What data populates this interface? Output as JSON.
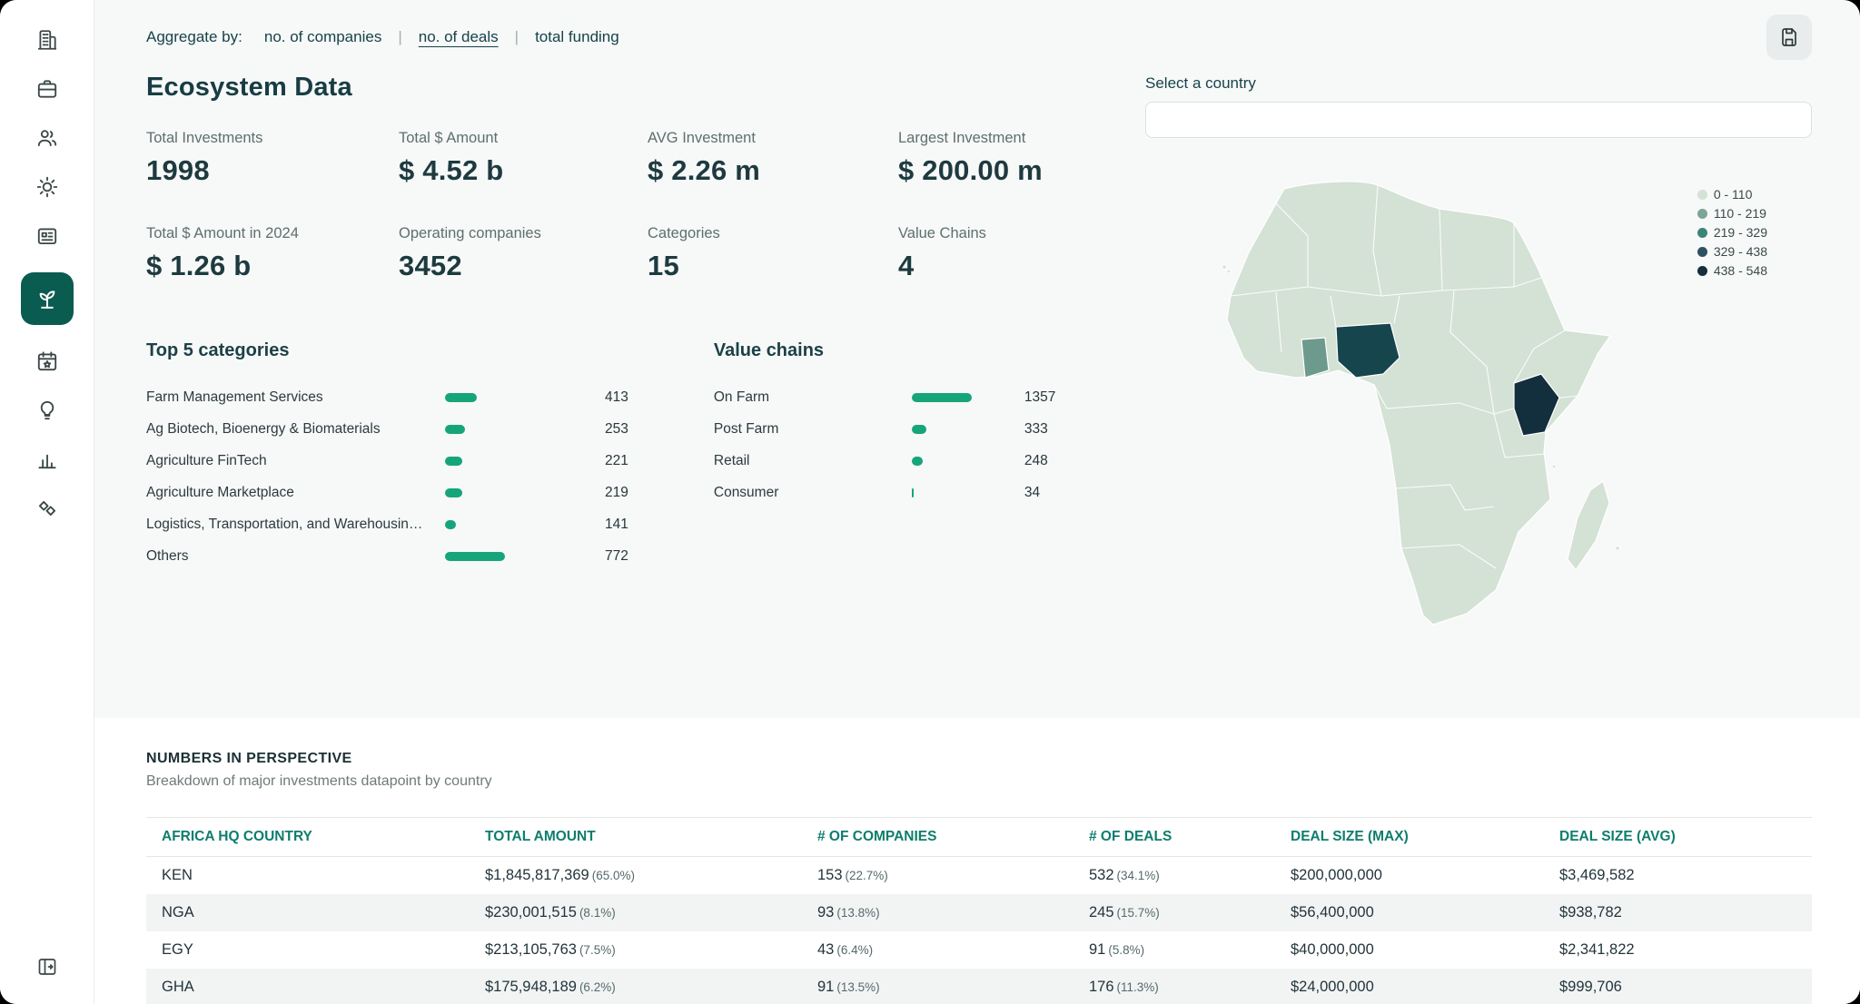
{
  "colors": {
    "accent_green": "#16a57a",
    "sidebar_active_bg": "#0a5c50",
    "table_header_text": "#0e7d6d",
    "map_base": "#d4e1d5"
  },
  "topbar": {
    "aggregate_label": "Aggregate by:",
    "separator": "|",
    "options": [
      {
        "label": "no. of companies",
        "active": false
      },
      {
        "label": "no. of deals",
        "active": true
      },
      {
        "label": "total funding",
        "active": false
      }
    ]
  },
  "header": {
    "title": "Ecosystem Data"
  },
  "stats": [
    {
      "label": "Total Investments",
      "value": "1998"
    },
    {
      "label": "Total $ Amount",
      "value": "$ 4.52 b"
    },
    {
      "label": "AVG Investment",
      "value": "$ 2.26 m"
    },
    {
      "label": "Largest Investment",
      "value": "$ 200.00 m"
    },
    {
      "label": "Total $ Amount in 2024",
      "value": "$ 1.26 b"
    },
    {
      "label": "Operating companies",
      "value": "3452"
    },
    {
      "label": "Categories",
      "value": "15"
    },
    {
      "label": "Value Chains",
      "value": "4"
    }
  ],
  "country_select": {
    "label": "Select a country",
    "value": ""
  },
  "map": {
    "legend": [
      {
        "label": "0 - 110",
        "color": "#d4e1d5"
      },
      {
        "label": "110 - 219",
        "color": "#7ea496"
      },
      {
        "label": "219 - 329",
        "color": "#3a8577"
      },
      {
        "label": "329 - 438",
        "color": "#2e5161"
      },
      {
        "label": "438 - 548",
        "color": "#152f3c"
      }
    ],
    "highlighted_countries": [
      {
        "name": "Nigeria",
        "color": "#16454e"
      },
      {
        "name": "Ghana",
        "color": "#6e9a8d"
      },
      {
        "name": "Kenya",
        "color": "#132e3c"
      }
    ]
  },
  "top_categories": {
    "title": "Top 5 categories",
    "items": [
      {
        "label": "Farm Management Services",
        "value": 413
      },
      {
        "label": "Ag Biotech, Bioenergy & Biomaterials",
        "value": 253
      },
      {
        "label": "Agriculture FinTech",
        "value": 221
      },
      {
        "label": "Agriculture Marketplace",
        "value": 219
      },
      {
        "label": "Logistics, Transportation, and Warehousin…",
        "value": 141
      },
      {
        "label": "Others",
        "value": 772
      }
    ]
  },
  "value_chains": {
    "title": "Value chains",
    "items": [
      {
        "label": "On Farm",
        "value": 1357
      },
      {
        "label": "Post Farm",
        "value": 333
      },
      {
        "label": "Retail",
        "value": 248
      },
      {
        "label": "Consumer",
        "value": 34
      }
    ]
  },
  "table_section": {
    "title": "NUMBERS IN PERSPECTIVE",
    "subtitle": "Breakdown of major investments datapoint by country",
    "columns": [
      "AFRICA HQ COUNTRY",
      "TOTAL AMOUNT",
      "# OF COMPANIES",
      "# OF DEALS",
      "DEAL SIZE (MAX)",
      "DEAL SIZE (AVG)"
    ],
    "rows": [
      {
        "cells": [
          {
            "v": "KEN"
          },
          {
            "v": "$1,845,817,369",
            "pct": "(65.0%)"
          },
          {
            "v": "153",
            "pct": "(22.7%)"
          },
          {
            "v": "532",
            "pct": "(34.1%)"
          },
          {
            "v": "$200,000,000"
          },
          {
            "v": "$3,469,582"
          }
        ]
      },
      {
        "cells": [
          {
            "v": "NGA"
          },
          {
            "v": "$230,001,515",
            "pct": "(8.1%)"
          },
          {
            "v": "93",
            "pct": "(13.8%)"
          },
          {
            "v": "245",
            "pct": "(15.7%)"
          },
          {
            "v": "$56,400,000"
          },
          {
            "v": "$938,782"
          }
        ]
      },
      {
        "cells": [
          {
            "v": "EGY"
          },
          {
            "v": "$213,105,763",
            "pct": "(7.5%)"
          },
          {
            "v": "43",
            "pct": "(6.4%)"
          },
          {
            "v": "91",
            "pct": "(5.8%)"
          },
          {
            "v": "$40,000,000"
          },
          {
            "v": "$2,341,822"
          }
        ]
      },
      {
        "cells": [
          {
            "v": "GHA"
          },
          {
            "v": "$175,948,189",
            "pct": "(6.2%)"
          },
          {
            "v": "91",
            "pct": "(13.5%)"
          },
          {
            "v": "176",
            "pct": "(11.3%)"
          },
          {
            "v": "$24,000,000"
          },
          {
            "v": "$999,706"
          }
        ]
      }
    ]
  },
  "chart_data": [
    {
      "type": "bar",
      "title": "Top 5 categories",
      "categories": [
        "Farm Management Services",
        "Ag Biotech, Bioenergy & Biomaterials",
        "Agriculture FinTech",
        "Agriculture Marketplace",
        "Logistics, Transportation, and Warehousin…",
        "Others"
      ],
      "values": [
        413,
        253,
        221,
        219,
        141,
        772
      ],
      "orientation": "horizontal"
    },
    {
      "type": "bar",
      "title": "Value chains",
      "categories": [
        "On Farm",
        "Post Farm",
        "Retail",
        "Consumer"
      ],
      "values": [
        1357,
        333,
        248,
        34
      ],
      "orientation": "horizontal"
    },
    {
      "type": "heatmap",
      "title": "Africa choropleth — no. of deals by country",
      "legend_buckets": [
        "0 - 110",
        "110 - 219",
        "219 - 329",
        "329 - 438",
        "438 - 548"
      ],
      "highlighted": [
        {
          "country": "Kenya",
          "value": 532
        },
        {
          "country": "Nigeria",
          "value": 245
        },
        {
          "country": "Ghana",
          "value": 176
        }
      ],
      "legend_position": "top-right"
    }
  ]
}
